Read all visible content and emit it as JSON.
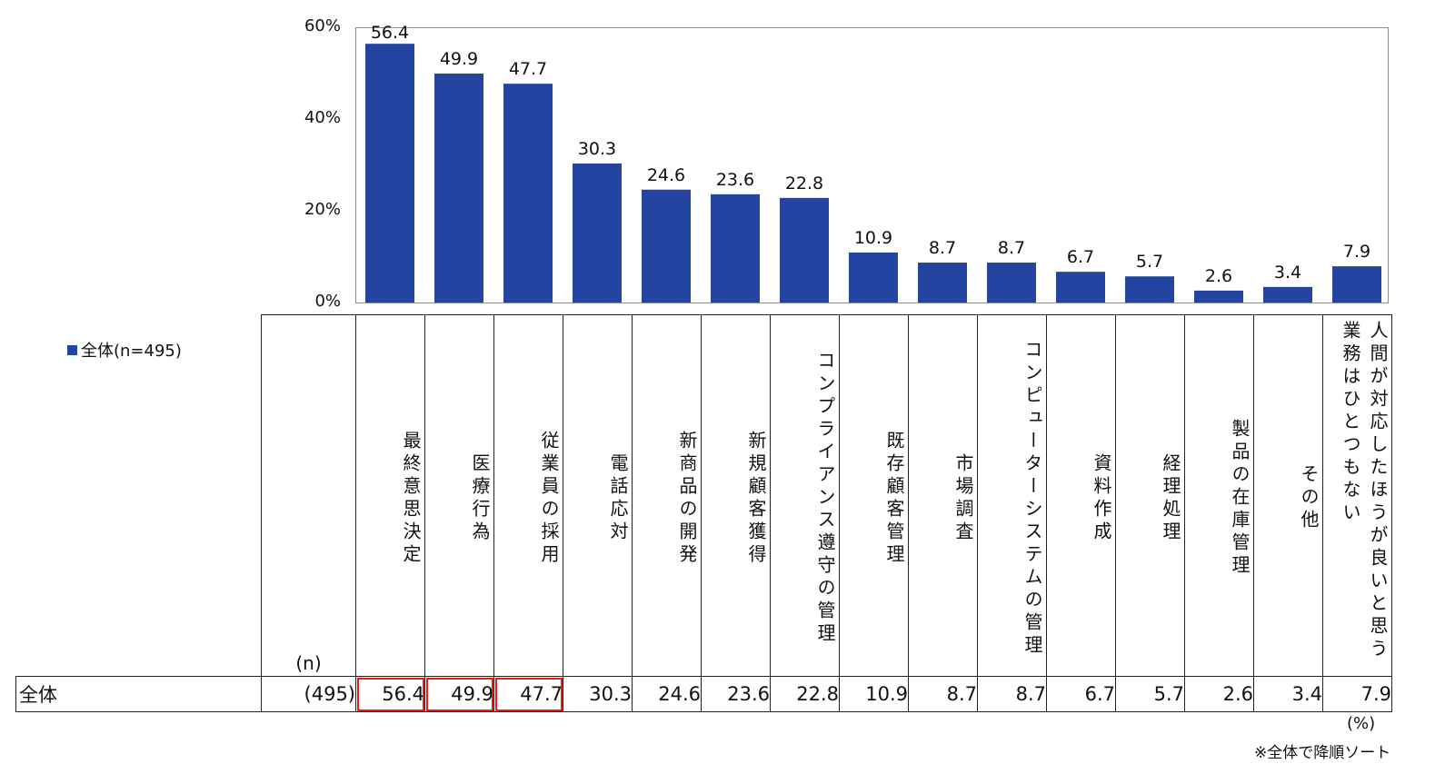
{
  "chart_data": {
    "type": "bar",
    "categories": [
      "最終意思決定",
      "医療行為",
      "従業員の採用",
      "電話応対",
      "新商品の開発",
      "新規顧客獲得",
      "コンプライアンス遵守の管理",
      "既存顧客管理",
      "市場調査",
      "コンピューターシステムの管理",
      "資料作成",
      "経理処理",
      "製品の在庫管理",
      "その他",
      "人間が対応したほうが良いと思う業務はひとつもない"
    ],
    "series": [
      {
        "name": "全体(n=495)",
        "values": [
          56.4,
          49.9,
          47.7,
          30.3,
          24.6,
          23.6,
          22.8,
          10.9,
          8.7,
          8.7,
          6.7,
          5.7,
          2.6,
          3.4,
          7.9
        ]
      }
    ],
    "value_labels": [
      "56.4",
      "49.9",
      "47.7",
      "30.3",
      "24.6",
      "23.6",
      "22.8",
      "10.9",
      "8.7",
      "8.7",
      "6.7",
      "5.7",
      "2.6",
      "3.4",
      "7.9"
    ],
    "ylim": [
      0,
      60
    ],
    "yticks": [
      0,
      20,
      40,
      60
    ],
    "ytick_labels": [
      "0%",
      "20%",
      "40%",
      "60%"
    ],
    "legend_position": "left",
    "bar_color": "#2344a0",
    "grid": false
  },
  "table": {
    "n_header": "(n)",
    "row_label": "全体",
    "row_n": "(495)",
    "row_values": [
      "56.4",
      "49.9",
      "47.7",
      "30.3",
      "24.6",
      "23.6",
      "22.8",
      "10.9",
      "8.7",
      "8.7",
      "6.7",
      "5.7",
      "2.6",
      "3.4",
      "7.9"
    ],
    "highlighted_indices": [
      0,
      1,
      2
    ],
    "highlight_color": "#e0201e"
  },
  "legend": {
    "label": "全体(n=495)"
  },
  "notes": {
    "unit": "(%)",
    "sort": "※全体で降順ソート"
  }
}
